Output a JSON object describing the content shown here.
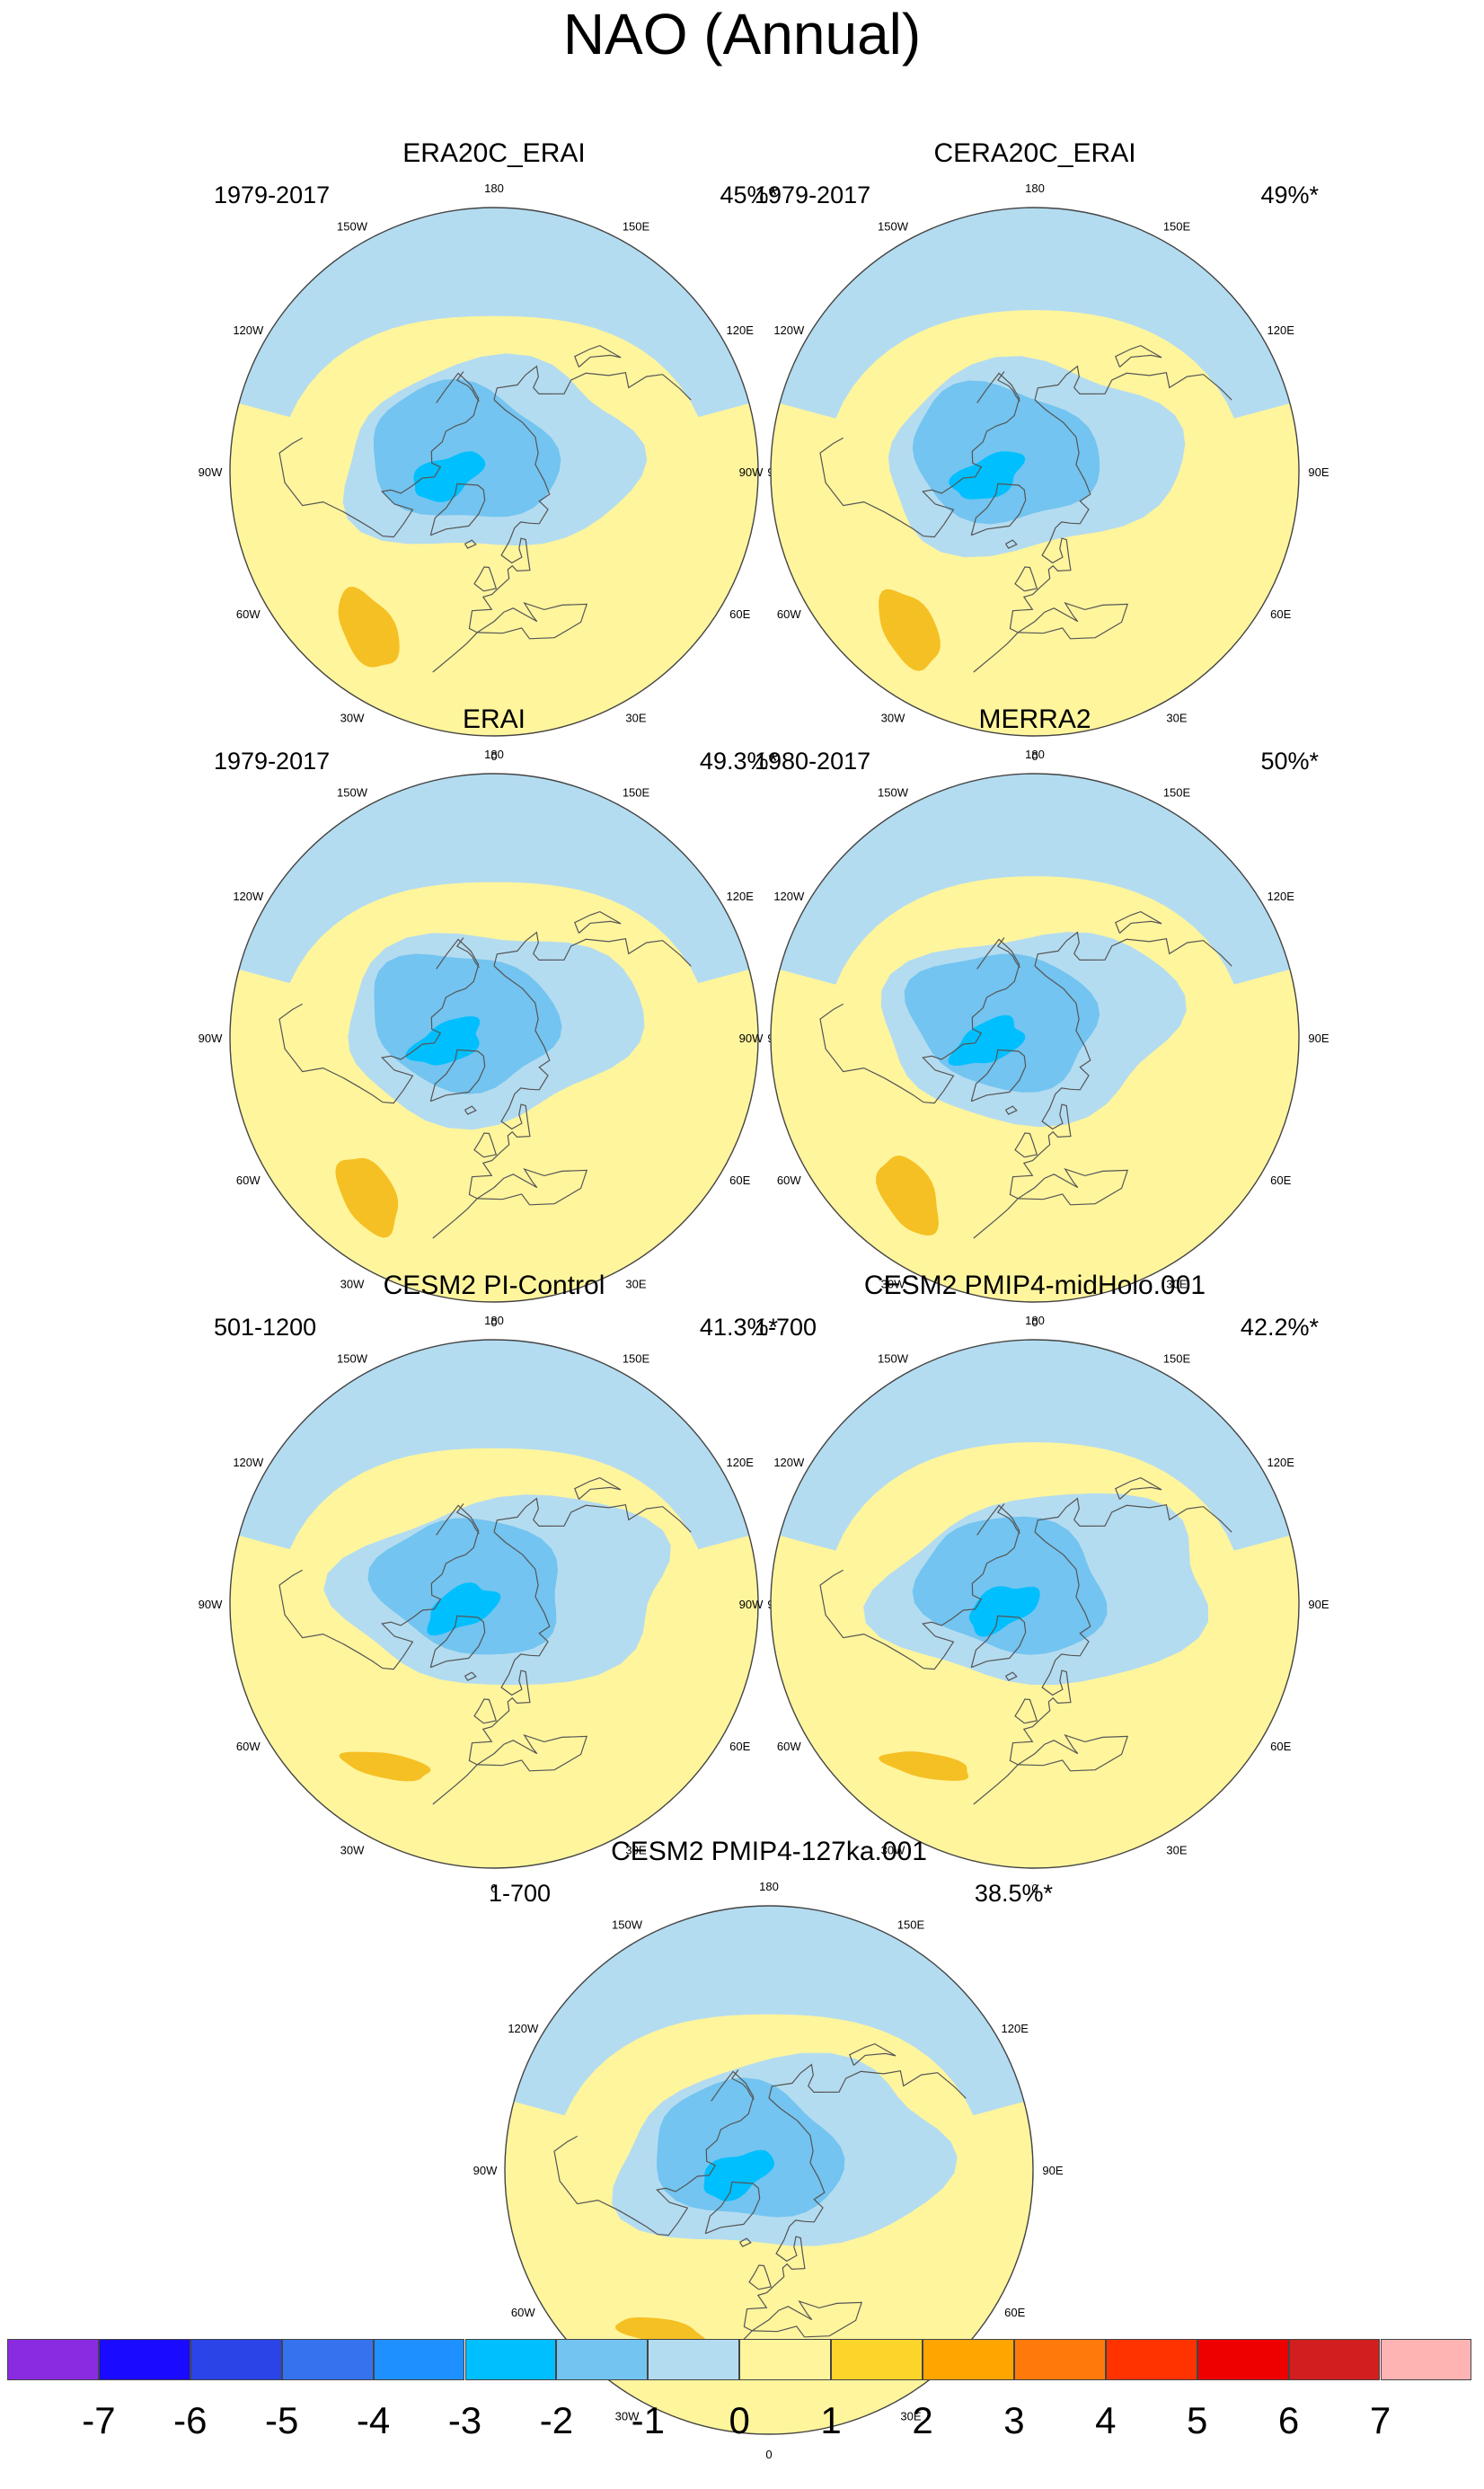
{
  "title": "NAO (Annual)",
  "colors": {
    "ocean_yellow": "#fff59d",
    "neg1": "#b4dcf0",
    "neg2": "#73c4f0",
    "neg3": "#00bfff",
    "pos2": "#f5c024",
    "coast": "#555555"
  },
  "panels": [
    {
      "title": "ERA20C_ERAI",
      "period": "1979-2017",
      "percent": "45%*",
      "lon_labels": [
        "180",
        "150E",
        "120E",
        "90E",
        "60E",
        "30E",
        "0",
        "30W",
        "60W",
        "90W",
        "120W",
        "150W"
      ],
      "min": "-3",
      "max": "2"
    },
    {
      "title": "CERA20C_ERAI",
      "period": "1979-2017",
      "percent": "49%*",
      "lon_labels": [
        "180",
        "150E",
        "120E",
        "90E",
        "60E",
        "30E",
        "0",
        "30W",
        "60W",
        "90W",
        "120W",
        "150W"
      ],
      "min": "-3",
      "max": "2"
    },
    {
      "title": "ERAI",
      "period": "1979-2017",
      "percent": "49.3%*",
      "lon_labels": [
        "180",
        "150E",
        "120E",
        "90E",
        "60E",
        "30E",
        "0",
        "30W",
        "60W",
        "90W",
        "120W",
        "150W"
      ],
      "min": "-3",
      "max": "2"
    },
    {
      "title": "MERRA2",
      "period": "1980-2017",
      "percent": "50%*",
      "lon_labels": [
        "180",
        "150E",
        "120E",
        "90E",
        "60E",
        "30E",
        "0",
        "30W",
        "60W",
        "90W",
        "120W",
        "150W"
      ],
      "min": "-3",
      "max": "2"
    },
    {
      "title": "CESM2 PI-Control",
      "period": "501-1200",
      "percent": "41.3%*",
      "lon_labels": [
        "180",
        "150E",
        "120E",
        "90E",
        "60E",
        "30E",
        "0",
        "30W",
        "60W",
        "90W",
        "120W",
        "150W"
      ],
      "min": "-3",
      "max": "2"
    },
    {
      "title": "CESM2 PMIP4-midHolo.001",
      "period": "1-700",
      "percent": "42.2%*",
      "lon_labels": [
        "180",
        "150E",
        "120E",
        "90E",
        "60E",
        "30E",
        "0",
        "30W",
        "60W",
        "90W",
        "120W",
        "150W"
      ],
      "min": "-3",
      "max": "2"
    },
    {
      "title": "CESM2 PMIP4-127ka.001",
      "period": "1-700",
      "percent": "38.5%*",
      "lon_labels": [
        "180",
        "150E",
        "120E",
        "90E",
        "60E",
        "30E",
        "0",
        "30W",
        "60W",
        "90W",
        "120W",
        "150W"
      ],
      "min": "-3",
      "max": "2"
    }
  ],
  "colorbar": {
    "colors": [
      "#8a2be2",
      "#1a0aff",
      "#2a44e8",
      "#3572ee",
      "#1e90ff",
      "#00bfff",
      "#73c4f0",
      "#b4dcf0",
      "#fff59d",
      "#fcd42a",
      "#ffa500",
      "#ff7a0a",
      "#ff3300",
      "#ee0000",
      "#d21e1e",
      "#ffb4b4"
    ],
    "labels": [
      "-7",
      "-6",
      "-5",
      "-4",
      "-3",
      "-2",
      "-1",
      "0",
      "1",
      "2",
      "3",
      "4",
      "5",
      "6",
      "7"
    ]
  }
}
